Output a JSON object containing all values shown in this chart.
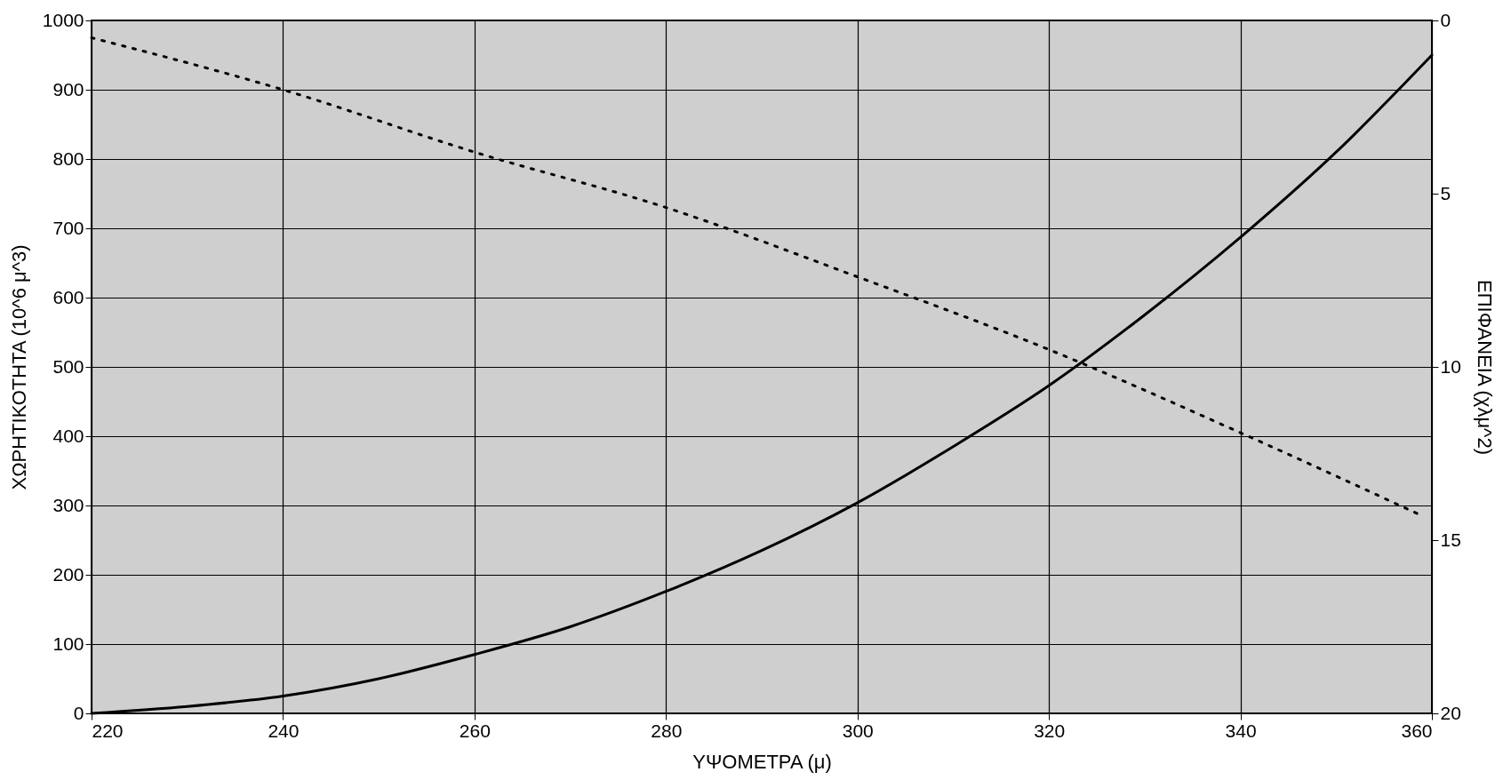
{
  "chart_data": {
    "type": "line",
    "xlabel": "ΥΨΟΜΕΤΡΑ (μ)",
    "ylabel": "ΧΩΡΗΤΙΚΟΤΗΤΑ (10^6 μ^3)",
    "y2label": "ΕΠΙΦΑΝΕΙΑ (χλμ^2)",
    "x": [
      220,
      230,
      240,
      250,
      260,
      270,
      280,
      290,
      300,
      310,
      320,
      330,
      340,
      350,
      360
    ],
    "series": [
      {
        "color": "#000000",
        "line_style": "solid",
        "values": [
          0,
          10,
          25,
          50,
          85,
          125,
          176,
          235,
          304,
          385,
          473,
          575,
          687,
          810,
          950
        ]
      },
      {
        "color": "#000000",
        "line_style": "dotted",
        "axis": "y2",
        "x": [
          220,
          240,
          260,
          280,
          300,
          320,
          340,
          359
        ],
        "values": [
          0.5,
          2.0,
          3.8,
          5.4,
          7.4,
          9.5,
          11.9,
          14.3
        ]
      }
    ],
    "xlim": [
      220,
      360
    ],
    "xticks": [
      220,
      240,
      260,
      280,
      300,
      320,
      340,
      360
    ],
    "ylim": [
      0,
      1000
    ],
    "yticks": [
      0,
      100,
      200,
      300,
      400,
      500,
      600,
      700,
      800,
      900,
      1000
    ],
    "y2lim": [
      20,
      0
    ],
    "y2ticks": [
      0,
      5,
      10,
      15,
      20
    ],
    "grid": true,
    "marker": "none"
  }
}
